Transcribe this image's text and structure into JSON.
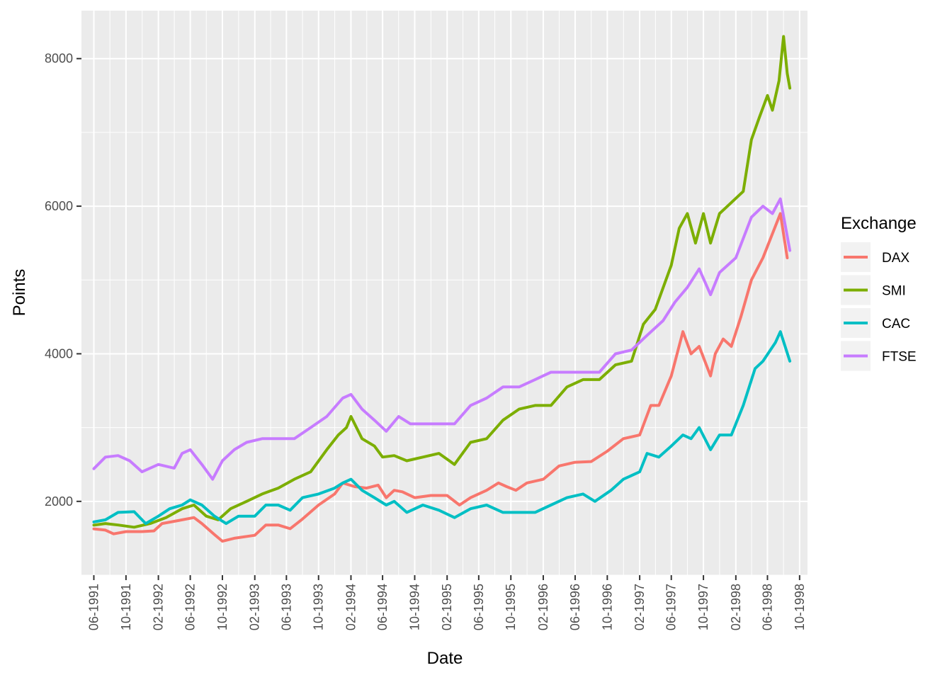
{
  "chart_data": {
    "type": "line",
    "title": "",
    "xlabel": "Date",
    "ylabel": "Points",
    "x_axis_type": "date",
    "xlim": [
      "1991-04-15",
      "1998-10-31"
    ],
    "ylim": [
      1000,
      8650
    ],
    "y_ticks": [
      2000,
      4000,
      6000,
      8000
    ],
    "y_tick_labels": [
      "2000",
      "4000",
      "6000",
      "8000"
    ],
    "x_ticks": [
      "1991-06-01",
      "1991-10-01",
      "1992-02-01",
      "1992-06-01",
      "1992-10-01",
      "1993-02-01",
      "1993-06-01",
      "1993-10-01",
      "1994-02-01",
      "1994-06-01",
      "1994-10-01",
      "1995-02-01",
      "1995-06-01",
      "1995-10-01",
      "1996-02-01",
      "1996-06-01",
      "1996-10-01",
      "1997-02-01",
      "1997-06-01",
      "1997-10-01",
      "1998-02-01",
      "1998-06-01",
      "1998-10-01"
    ],
    "x_tick_labels": [
      "06-1991",
      "10-1991",
      "02-1992",
      "06-1992",
      "10-1992",
      "02-1993",
      "06-1993",
      "10-1993",
      "02-1994",
      "06-1994",
      "10-1994",
      "02-1995",
      "06-1995",
      "10-1995",
      "02-1996",
      "06-1996",
      "10-1996",
      "02-1997",
      "06-1997",
      "10-1997",
      "02-1998",
      "06-1998",
      "10-1998"
    ],
    "grid": true,
    "background": "#ebebeb",
    "legend": {
      "title": "Exchange",
      "position": "right"
    },
    "series": [
      {
        "name": "DAX",
        "color": "#f8766d",
        "points": [
          [
            "1991-06-01",
            1628
          ],
          [
            "1991-07-15",
            1610
          ],
          [
            "1991-08-15",
            1560
          ],
          [
            "1991-10-01",
            1590
          ],
          [
            "1991-12-01",
            1590
          ],
          [
            "1992-01-15",
            1600
          ],
          [
            "1992-02-15",
            1700
          ],
          [
            "1992-05-01",
            1750
          ],
          [
            "1992-06-15",
            1780
          ],
          [
            "1992-07-15",
            1700
          ],
          [
            "1992-09-01",
            1550
          ],
          [
            "1992-10-01",
            1460
          ],
          [
            "1992-11-15",
            1500
          ],
          [
            "1993-02-01",
            1540
          ],
          [
            "1993-03-15",
            1680
          ],
          [
            "1993-05-01",
            1680
          ],
          [
            "1993-06-15",
            1630
          ],
          [
            "1993-08-01",
            1760
          ],
          [
            "1993-10-01",
            1950
          ],
          [
            "1993-12-01",
            2100
          ],
          [
            "1994-01-01",
            2250
          ],
          [
            "1994-02-15",
            2200
          ],
          [
            "1994-04-01",
            2180
          ],
          [
            "1994-05-15",
            2220
          ],
          [
            "1994-06-15",
            2050
          ],
          [
            "1994-07-15",
            2150
          ],
          [
            "1994-08-15",
            2130
          ],
          [
            "1994-10-01",
            2050
          ],
          [
            "1994-12-01",
            2080
          ],
          [
            "1995-02-01",
            2080
          ],
          [
            "1995-03-20",
            1950
          ],
          [
            "1995-05-01",
            2050
          ],
          [
            "1995-07-01",
            2150
          ],
          [
            "1995-08-15",
            2250
          ],
          [
            "1995-09-15",
            2200
          ],
          [
            "1995-10-20",
            2150
          ],
          [
            "1995-12-01",
            2250
          ],
          [
            "1996-02-01",
            2300
          ],
          [
            "1996-04-01",
            2480
          ],
          [
            "1996-06-01",
            2530
          ],
          [
            "1996-08-01",
            2540
          ],
          [
            "1996-10-01",
            2680
          ],
          [
            "1996-12-01",
            2850
          ],
          [
            "1997-02-01",
            2900
          ],
          [
            "1997-03-15",
            3300
          ],
          [
            "1997-04-15",
            3300
          ],
          [
            "1997-06-01",
            3700
          ],
          [
            "1997-07-15",
            4300
          ],
          [
            "1997-08-15",
            4000
          ],
          [
            "1997-09-15",
            4100
          ],
          [
            "1997-10-28",
            3700
          ],
          [
            "1997-11-15",
            4000
          ],
          [
            "1997-12-15",
            4200
          ],
          [
            "1998-01-15",
            4100
          ],
          [
            "1998-02-20",
            4500
          ],
          [
            "1998-04-01",
            5000
          ],
          [
            "1998-05-15",
            5300
          ],
          [
            "1998-07-20",
            5900
          ],
          [
            "1998-08-15",
            5300
          ]
        ]
      },
      {
        "name": "SMI",
        "color": "#7cae00",
        "points": [
          [
            "1991-06-01",
            1678
          ],
          [
            "1991-07-15",
            1700
          ],
          [
            "1991-09-01",
            1680
          ],
          [
            "1991-11-01",
            1650
          ],
          [
            "1992-01-01",
            1700
          ],
          [
            "1992-03-01",
            1780
          ],
          [
            "1992-05-01",
            1900
          ],
          [
            "1992-06-15",
            1950
          ],
          [
            "1992-08-01",
            1800
          ],
          [
            "1992-09-15",
            1750
          ],
          [
            "1992-11-01",
            1900
          ],
          [
            "1993-01-01",
            2000
          ],
          [
            "1993-03-01",
            2100
          ],
          [
            "1993-05-01",
            2180
          ],
          [
            "1993-07-01",
            2300
          ],
          [
            "1993-09-01",
            2400
          ],
          [
            "1993-11-01",
            2700
          ],
          [
            "1993-12-15",
            2900
          ],
          [
            "1994-01-15",
            3000
          ],
          [
            "1994-02-01",
            3150
          ],
          [
            "1994-03-15",
            2850
          ],
          [
            "1994-05-01",
            2750
          ],
          [
            "1994-06-01",
            2600
          ],
          [
            "1994-07-15",
            2620
          ],
          [
            "1994-09-01",
            2550
          ],
          [
            "1994-11-01",
            2600
          ],
          [
            "1995-01-01",
            2650
          ],
          [
            "1995-03-01",
            2500
          ],
          [
            "1995-05-01",
            2800
          ],
          [
            "1995-07-01",
            2850
          ],
          [
            "1995-09-01",
            3100
          ],
          [
            "1995-11-01",
            3250
          ],
          [
            "1996-01-01",
            3300
          ],
          [
            "1996-03-01",
            3300
          ],
          [
            "1996-05-01",
            3550
          ],
          [
            "1996-07-01",
            3650
          ],
          [
            "1996-09-01",
            3650
          ],
          [
            "1996-11-01",
            3850
          ],
          [
            "1997-01-01",
            3900
          ],
          [
            "1997-02-15",
            4400
          ],
          [
            "1997-04-01",
            4600
          ],
          [
            "1997-06-01",
            5200
          ],
          [
            "1997-07-01",
            5700
          ],
          [
            "1997-08-01",
            5900
          ],
          [
            "1997-09-01",
            5500
          ],
          [
            "1997-10-01",
            5900
          ],
          [
            "1997-10-28",
            5500
          ],
          [
            "1997-12-01",
            5900
          ],
          [
            "1998-01-15",
            6050
          ],
          [
            "1998-03-01",
            6200
          ],
          [
            "1998-04-01",
            6900
          ],
          [
            "1998-05-01",
            7200
          ],
          [
            "1998-06-01",
            7500
          ],
          [
            "1998-06-20",
            7300
          ],
          [
            "1998-07-15",
            7700
          ],
          [
            "1998-08-01",
            8300
          ],
          [
            "1998-08-15",
            7800
          ],
          [
            "1998-08-25",
            7600
          ]
        ]
      },
      {
        "name": "CAC",
        "color": "#00bfc4",
        "points": [
          [
            "1991-06-01",
            1722
          ],
          [
            "1991-07-15",
            1750
          ],
          [
            "1991-09-01",
            1850
          ],
          [
            "1991-11-01",
            1860
          ],
          [
            "1991-12-15",
            1700
          ],
          [
            "1992-02-01",
            1800
          ],
          [
            "1992-03-15",
            1900
          ],
          [
            "1992-05-01",
            1950
          ],
          [
            "1992-06-01",
            2020
          ],
          [
            "1992-07-15",
            1950
          ],
          [
            "1992-09-01",
            1800
          ],
          [
            "1992-10-15",
            1700
          ],
          [
            "1992-12-01",
            1800
          ],
          [
            "1993-02-01",
            1800
          ],
          [
            "1993-03-15",
            1950
          ],
          [
            "1993-05-01",
            1950
          ],
          [
            "1993-06-15",
            1880
          ],
          [
            "1993-08-01",
            2050
          ],
          [
            "1993-10-01",
            2100
          ],
          [
            "1993-12-01",
            2180
          ],
          [
            "1994-01-01",
            2250
          ],
          [
            "1994-02-01",
            2300
          ],
          [
            "1994-03-15",
            2150
          ],
          [
            "1994-05-01",
            2050
          ],
          [
            "1994-06-15",
            1950
          ],
          [
            "1994-07-15",
            2000
          ],
          [
            "1994-09-01",
            1850
          ],
          [
            "1994-11-01",
            1950
          ],
          [
            "1995-01-01",
            1880
          ],
          [
            "1995-03-01",
            1780
          ],
          [
            "1995-05-01",
            1900
          ],
          [
            "1995-07-01",
            1950
          ],
          [
            "1995-09-01",
            1850
          ],
          [
            "1995-11-01",
            1850
          ],
          [
            "1996-01-01",
            1850
          ],
          [
            "1996-03-01",
            1950
          ],
          [
            "1996-05-01",
            2050
          ],
          [
            "1996-07-01",
            2100
          ],
          [
            "1996-08-15",
            2000
          ],
          [
            "1996-10-15",
            2150
          ],
          [
            "1996-12-01",
            2300
          ],
          [
            "1997-02-01",
            2400
          ],
          [
            "1997-03-01",
            2650
          ],
          [
            "1997-04-15",
            2600
          ],
          [
            "1997-06-01",
            2750
          ],
          [
            "1997-07-15",
            2900
          ],
          [
            "1997-08-15",
            2850
          ],
          [
            "1997-09-15",
            3000
          ],
          [
            "1997-10-28",
            2700
          ],
          [
            "1997-12-01",
            2900
          ],
          [
            "1998-01-15",
            2900
          ],
          [
            "1998-03-01",
            3300
          ],
          [
            "1998-04-15",
            3800
          ],
          [
            "1998-05-15",
            3900
          ],
          [
            "1998-07-01",
            4150
          ],
          [
            "1998-07-20",
            4300
          ],
          [
            "1998-08-25",
            3900
          ]
        ]
      },
      {
        "name": "FTSE",
        "color": "#c77cff",
        "points": [
          [
            "1991-06-01",
            2443
          ],
          [
            "1991-07-15",
            2600
          ],
          [
            "1991-09-01",
            2620
          ],
          [
            "1991-10-15",
            2550
          ],
          [
            "1991-12-01",
            2400
          ],
          [
            "1992-02-01",
            2500
          ],
          [
            "1992-04-01",
            2450
          ],
          [
            "1992-05-01",
            2650
          ],
          [
            "1992-06-01",
            2700
          ],
          [
            "1992-07-15",
            2500
          ],
          [
            "1992-08-25",
            2300
          ],
          [
            "1992-10-01",
            2550
          ],
          [
            "1992-11-15",
            2700
          ],
          [
            "1993-01-01",
            2800
          ],
          [
            "1993-03-01",
            2850
          ],
          [
            "1993-05-01",
            2850
          ],
          [
            "1993-07-01",
            2850
          ],
          [
            "1993-09-01",
            3000
          ],
          [
            "1993-11-01",
            3150
          ],
          [
            "1994-01-01",
            3400
          ],
          [
            "1994-02-01",
            3450
          ],
          [
            "1994-03-15",
            3250
          ],
          [
            "1994-05-01",
            3100
          ],
          [
            "1994-06-15",
            2950
          ],
          [
            "1994-08-01",
            3150
          ],
          [
            "1994-09-15",
            3050
          ],
          [
            "1994-11-01",
            3050
          ],
          [
            "1995-01-01",
            3050
          ],
          [
            "1995-03-01",
            3050
          ],
          [
            "1995-05-01",
            3300
          ],
          [
            "1995-07-01",
            3400
          ],
          [
            "1995-09-01",
            3550
          ],
          [
            "1995-11-01",
            3550
          ],
          [
            "1996-01-01",
            3650
          ],
          [
            "1996-03-01",
            3750
          ],
          [
            "1996-05-01",
            3750
          ],
          [
            "1996-07-01",
            3750
          ],
          [
            "1996-09-01",
            3750
          ],
          [
            "1996-11-01",
            4000
          ],
          [
            "1997-01-01",
            4050
          ],
          [
            "1997-03-01",
            4250
          ],
          [
            "1997-05-01",
            4450
          ],
          [
            "1997-06-15",
            4700
          ],
          [
            "1997-08-01",
            4900
          ],
          [
            "1997-09-15",
            5150
          ],
          [
            "1997-10-28",
            4800
          ],
          [
            "1997-12-01",
            5100
          ],
          [
            "1998-02-01",
            5300
          ],
          [
            "1998-04-01",
            5850
          ],
          [
            "1998-05-15",
            6000
          ],
          [
            "1998-06-20",
            5900
          ],
          [
            "1998-07-20",
            6100
          ],
          [
            "1998-08-25",
            5400
          ]
        ]
      }
    ]
  }
}
